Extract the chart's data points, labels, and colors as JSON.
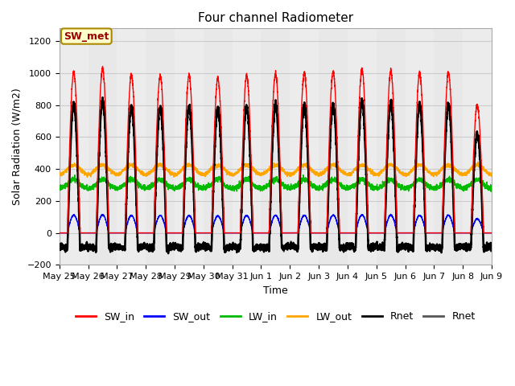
{
  "title": "Four channel Radiometer",
  "xlabel": "Time",
  "ylabel": "Solar Radiation (W/m2)",
  "ylim": [
    -200,
    1280
  ],
  "yticks": [
    -200,
    0,
    200,
    400,
    600,
    800,
    1000,
    1200
  ],
  "x_labels": [
    "May 25",
    "May 26",
    "May 27",
    "May 28",
    "May 29",
    "May 30",
    "May 31",
    "Jun 1",
    "Jun 2",
    "Jun 3",
    "Jun 4",
    "Jun 5",
    "Jun 6",
    "Jun 7",
    "Jun 8",
    "Jun 9"
  ],
  "n_days": 15,
  "annotation_text": "SW_met",
  "annotation_box_color": "#FFFFCC",
  "annotation_border_color": "#AA8800",
  "annotation_text_color": "#990000",
  "fig_bg_color": "#FFFFFF",
  "plot_bg_color": "#FFFFFF",
  "band_light": "#E8E8E8",
  "band_dark": "#D0D0D0",
  "sw_in_color": "#FF0000",
  "sw_out_color": "#0000FF",
  "lw_in_color": "#00BB00",
  "lw_out_color": "#FFA500",
  "rnet1_color": "#000000",
  "rnet2_color": "#555555",
  "legend_labels": [
    "SW_in",
    "SW_out",
    "LW_in",
    "LW_out",
    "Rnet",
    "Rnet"
  ],
  "legend_colors": [
    "#FF0000",
    "#0000FF",
    "#00BB00",
    "#FFA500",
    "#000000",
    "#555555"
  ],
  "grid_color": "#CCCCCC",
  "title_fontsize": 11,
  "label_fontsize": 9,
  "tick_fontsize": 8
}
